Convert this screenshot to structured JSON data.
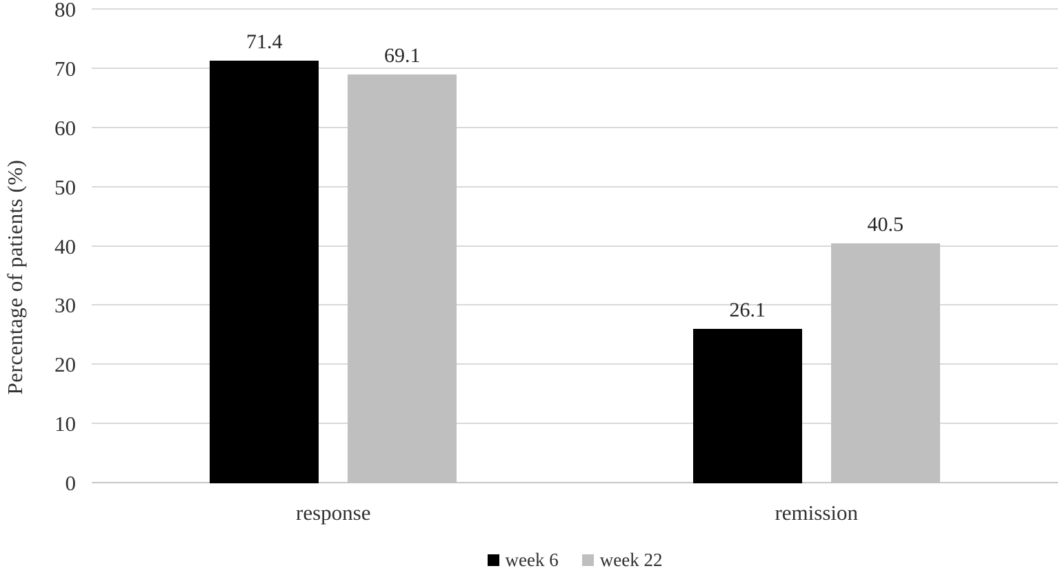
{
  "chart_data": {
    "type": "bar",
    "title": "",
    "categories": [
      "response",
      "remission"
    ],
    "series": [
      {
        "name": "week 6",
        "color": "#000000",
        "values": [
          71.4,
          26.1
        ]
      },
      {
        "name": "week 22",
        "color": "#bfbfbf",
        "values": [
          69.1,
          40.5
        ]
      }
    ],
    "value_labels": [
      [
        "71.4",
        "26.1"
      ],
      [
        "69.1",
        "40.5"
      ]
    ],
    "xlabel": "",
    "ylabel": "Percentage of patients (%)",
    "ylim": [
      0,
      80
    ],
    "yticks": [
      0,
      10,
      20,
      30,
      40,
      50,
      60,
      70,
      80
    ],
    "grid": true,
    "legend_position": "bottom"
  },
  "colors": {
    "gridline": "#d9d9d9",
    "baseline": "#c6c6c6",
    "text": "#303030"
  }
}
